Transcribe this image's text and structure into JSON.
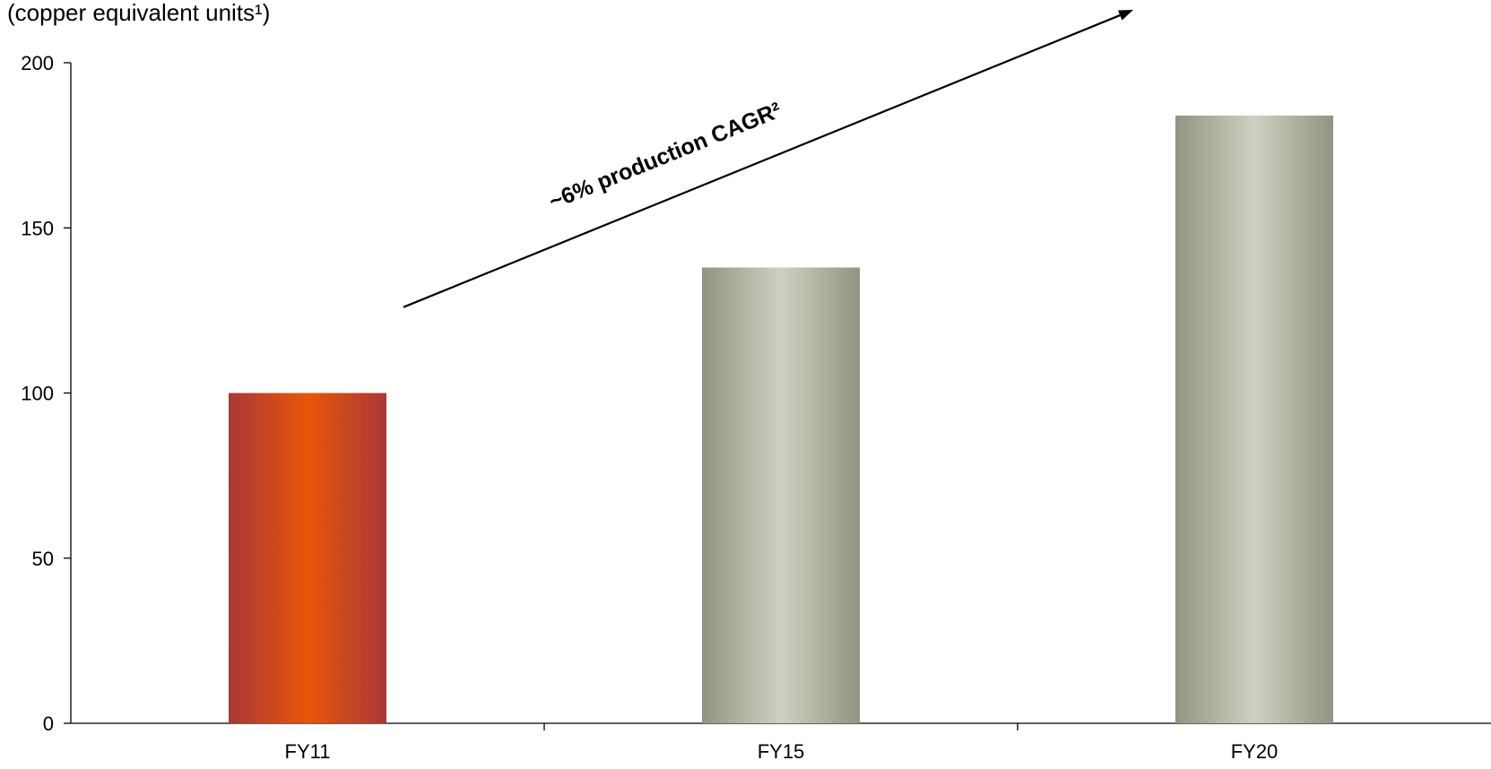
{
  "chart_data": {
    "type": "bar",
    "unit_label": "(copper equivalent units¹)",
    "categories": [
      "FY11",
      "FY15",
      "FY20"
    ],
    "values": [
      100,
      138,
      184
    ],
    "ylim": [
      0,
      200
    ],
    "yticks": [
      0,
      50,
      100,
      150,
      200
    ],
    "grid": false,
    "legend": "none",
    "annotation": {
      "text": "~6% production CAGR²",
      "arrow_from": {
        "category": "FY11",
        "value": 126
      },
      "arrow_to": {
        "category": "FY20",
        "value": 216
      }
    },
    "bar_colors": [
      {
        "edge": "#a83838",
        "center": "#e8560a"
      },
      {
        "edge": "#939383",
        "center": "#d0d0c2"
      },
      {
        "edge": "#939383",
        "center": "#d0d0c2"
      }
    ]
  }
}
